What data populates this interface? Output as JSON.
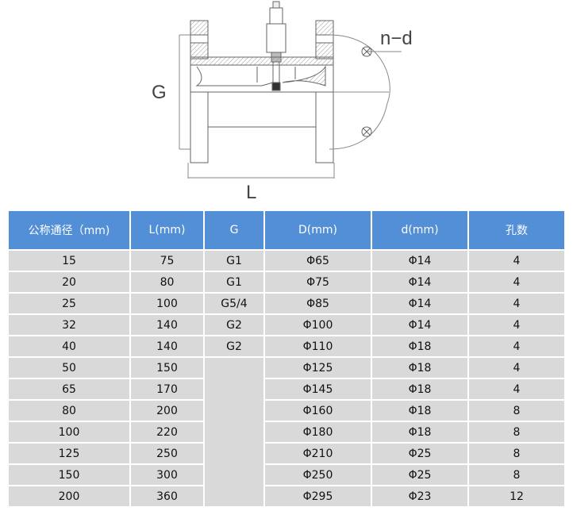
{
  "drawing": {
    "labels": {
      "g": "G",
      "l": "L",
      "nd": "n−d"
    }
  },
  "table": {
    "header_color": "#538fd6",
    "row_color": "#d9d9d9",
    "columns": [
      "公称通径（mm)",
      "L(mm)",
      "G",
      "D(mm)",
      "d(mm)",
      "孔数"
    ],
    "rows": [
      [
        "15",
        "75",
        "G1",
        "Φ65",
        "Φ14",
        "4"
      ],
      [
        "20",
        "80",
        "G1",
        "Φ75",
        "Φ14",
        "4"
      ],
      [
        "25",
        "100",
        "G5/4",
        "Φ85",
        "Φ14",
        "4"
      ],
      [
        "32",
        "140",
        "G2",
        "Φ100",
        "Φ14",
        "4"
      ],
      [
        "40",
        "140",
        "G2",
        "Φ110",
        "Φ18",
        "4"
      ],
      [
        "50",
        "150",
        "",
        "Φ125",
        "Φ18",
        "4"
      ],
      [
        "65",
        "170",
        null,
        "Φ145",
        "Φ18",
        "4"
      ],
      [
        "80",
        "200",
        null,
        "Φ160",
        "Φ18",
        "8"
      ],
      [
        "100",
        "220",
        null,
        "Φ180",
        "Φ18",
        "8"
      ],
      [
        "125",
        "250",
        null,
        "Φ210",
        "Φ25",
        "8"
      ],
      [
        "150",
        "300",
        null,
        "Φ250",
        "Φ25",
        "8"
      ],
      [
        "200",
        "360",
        null,
        "Φ295",
        "Φ23",
        "12"
      ]
    ]
  }
}
